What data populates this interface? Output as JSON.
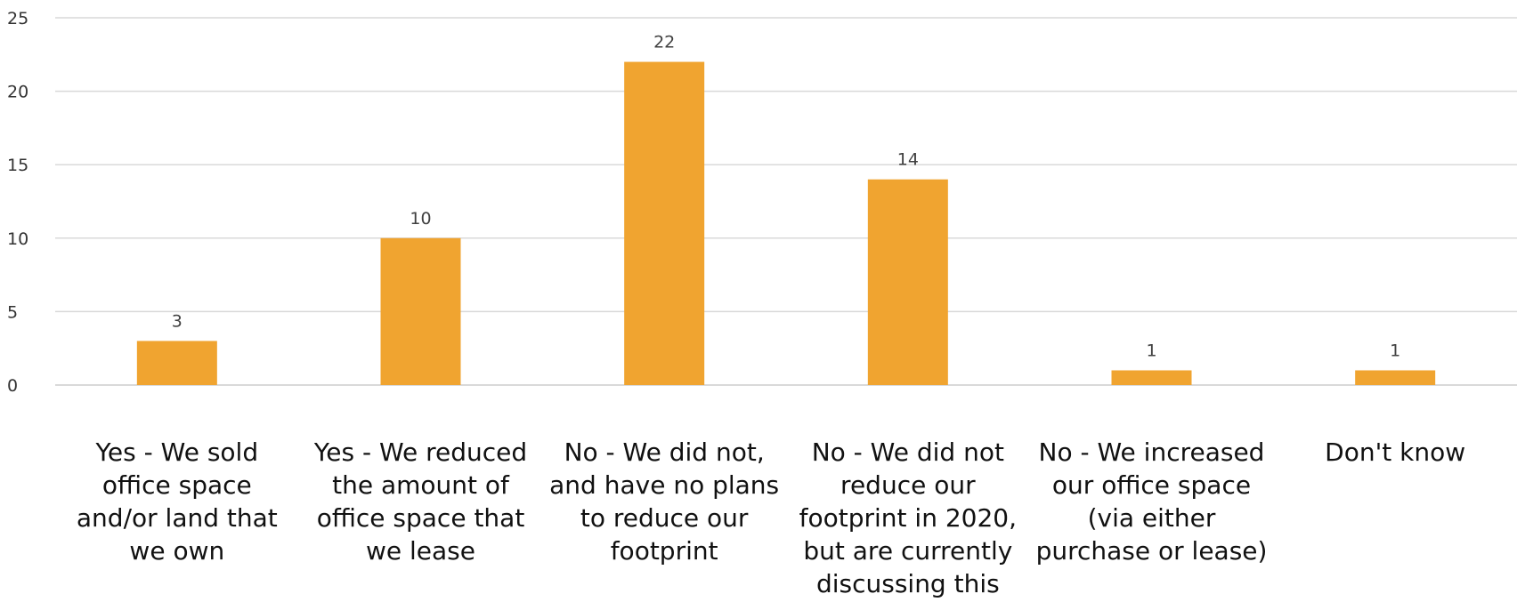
{
  "chart_data": {
    "type": "bar",
    "categories": [
      "Yes - We sold office space and/or land that we own",
      "Yes - We reduced the amount of office space that we lease",
      "No - We did not, and have no plans to reduce our footprint",
      "No - We did not reduce our footprint in 2020, but are currently discussing this",
      "No - We increased our office space (via either purchase or lease)",
      "Don't know"
    ],
    "values": [
      3,
      10,
      22,
      14,
      1,
      1
    ],
    "title": "",
    "xlabel": "",
    "ylabel": "",
    "ylim": [
      0,
      25
    ],
    "yticks": [
      0,
      5,
      10,
      15,
      20,
      25
    ],
    "grid": true,
    "data_labels": true,
    "bar_color": "#F0A430",
    "gridline_color": "#D9D9D9"
  }
}
